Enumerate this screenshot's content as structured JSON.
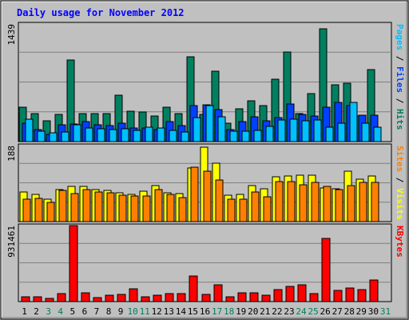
{
  "chart_data": {
    "type": "bar",
    "title": "Daily usage for November 2012",
    "categories": [
      "1",
      "2",
      "3",
      "4",
      "5",
      "6",
      "7",
      "8",
      "9",
      "10",
      "11",
      "12",
      "13",
      "14",
      "15",
      "16",
      "17",
      "18",
      "19",
      "20",
      "21",
      "22",
      "23",
      "24",
      "25",
      "26",
      "27",
      "28",
      "29",
      "30",
      "31"
    ],
    "weekend_days": [
      "3",
      "4",
      "10",
      "11",
      "17",
      "18",
      "24",
      "25",
      "31"
    ],
    "panels": [
      {
        "id": "pfh",
        "ymax_label": "1439",
        "ylim": [
          0,
          1439
        ],
        "right_label_parts": [
          {
            "text": "Pages",
            "color": "#00c0ff"
          },
          {
            "text": " / ",
            "color": "#000000"
          },
          {
            "text": "Files",
            "color": "#0040ff"
          },
          {
            "text": " / ",
            "color": "#000000"
          },
          {
            "text": "Hits",
            "color": "#008060"
          }
        ],
        "series": [
          {
            "name": "Hits",
            "color": "#008060",
            "values": [
              418,
              339,
              257,
              329,
              1000,
              344,
              345,
              341,
              568,
              369,
              366,
              314,
              425,
              345,
              1040,
              332,
              857,
              221,
              401,
              502,
              444,
              768,
              1100,
              345,
              591,
              1380,
              698,
              718,
              316,
              880,
              0
            ]
          },
          {
            "name": "Files",
            "color": "#0040ff",
            "values": [
              230,
              150,
              90,
              210,
              220,
              240,
              210,
              200,
              230,
              170,
              170,
              150,
              240,
              200,
              440,
              450,
              390,
              150,
              240,
              300,
              250,
              290,
              460,
              330,
              310,
              420,
              480,
              440,
              320,
              320,
              0
            ]
          },
          {
            "name": "Pages",
            "color": "#00c0ff",
            "values": [
              270,
              130,
              110,
              120,
              210,
              170,
              160,
              150,
              160,
              140,
              180,
              170,
              140,
              120,
              290,
              440,
              300,
              130,
              130,
              140,
              190,
              260,
              270,
              250,
              260,
              180,
              230,
              480,
              230,
              180,
              0
            ]
          }
        ]
      },
      {
        "id": "sv",
        "ymax_label": "188",
        "ylim": [
          0,
          188
        ],
        "right_label_parts": [
          {
            "text": "Sites",
            "color": "#ff8000"
          },
          {
            "text": " / ",
            "color": "#000000"
          },
          {
            "text": "Visits",
            "color": "#ffff00"
          }
        ],
        "series": [
          {
            "name": "Visits",
            "color": "#ffff00",
            "values": [
              74,
              68,
              56,
              79,
              88,
              88,
              79,
              77,
              72,
              68,
              76,
              90,
              72,
              70,
              132,
              184,
              144,
              66,
              68,
              90,
              82,
              110,
              112,
              114,
              114,
              84,
              82,
              124,
              104,
              112,
              0
            ]
          },
          {
            "name": "Sites",
            "color": "#ff8000",
            "values": [
              56,
              58,
              48,
              78,
              70,
              80,
              74,
              72,
              66,
              64,
              64,
              80,
              68,
              60,
              134,
              124,
              102,
              56,
              56,
              74,
              62,
              98,
              98,
              92,
              96,
              88,
              80,
              90,
              96,
              96,
              0
            ]
          }
        ]
      },
      {
        "id": "kb",
        "ymax_label": "931461",
        "ylim": [
          0,
          931461
        ],
        "right_label_parts": [
          {
            "text": "KBytes",
            "color": "#ff0000"
          }
        ],
        "series": [
          {
            "name": "KBytes",
            "color": "#ff0000",
            "values": [
              60000,
              60000,
              40000,
              100000,
              931461,
              110000,
              50000,
              80000,
              90000,
              160000,
              60000,
              80000,
              100000,
              100000,
              310000,
              90000,
              210000,
              60000,
              110000,
              110000,
              80000,
              150000,
              190000,
              210000,
              100000,
              770000,
              140000,
              170000,
              150000,
              260000,
              0
            ]
          }
        ]
      }
    ]
  }
}
